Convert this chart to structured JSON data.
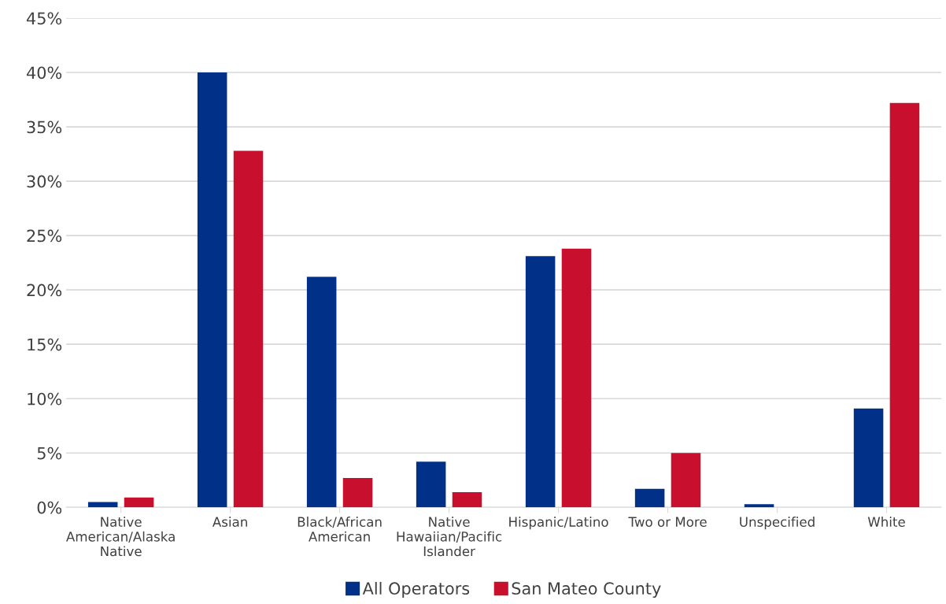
{
  "chart_data": {
    "type": "bar",
    "categories": [
      "Native American/Alaska Native",
      "Asian",
      "Black/African American",
      "Native Hawaiian/Pacific Islander",
      "Hispanic/Latino",
      "Two or More",
      "Unspecified",
      "White"
    ],
    "series": [
      {
        "name": "All Operators",
        "color": "#003087",
        "values": [
          0.5,
          40.0,
          21.2,
          4.2,
          23.1,
          1.7,
          0.3,
          9.1
        ]
      },
      {
        "name": "San Mateo County",
        "color": "#c8102e",
        "values": [
          0.9,
          32.8,
          2.7,
          1.4,
          23.8,
          5.0,
          0,
          37.2
        ]
      }
    ],
    "ylim": [
      0,
      45
    ],
    "yticks": [
      {
        "value": 0,
        "label": "0%"
      },
      {
        "value": 5,
        "label": "5%"
      },
      {
        "value": 10,
        "label": "10%"
      },
      {
        "value": 15,
        "label": "15%"
      },
      {
        "value": 20,
        "label": "20%"
      },
      {
        "value": 25,
        "label": "25%"
      },
      {
        "value": 30,
        "label": "30%"
      },
      {
        "value": 35,
        "label": "35%"
      },
      {
        "value": 40,
        "label": "40%"
      },
      {
        "value": 45,
        "label": "45%"
      }
    ],
    "grid": "y",
    "legend": "bottom"
  }
}
